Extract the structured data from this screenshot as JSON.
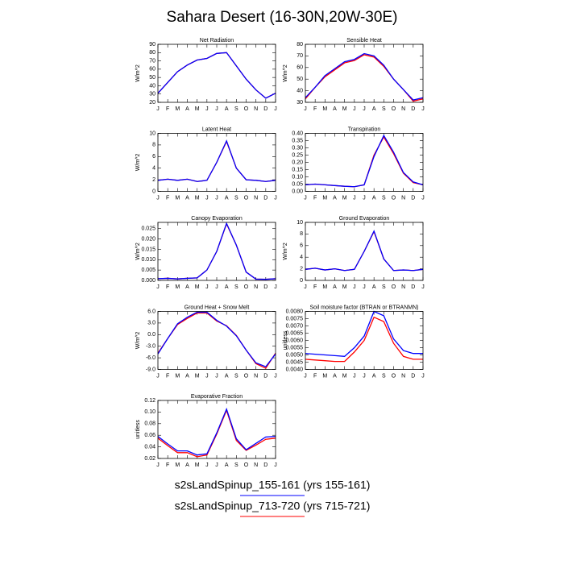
{
  "title": "Sahara Desert (16-30N,20W-30E)",
  "chart_data": [
    {
      "type": "line",
      "title": "Net Radiation",
      "y_label": "W/m^2",
      "categories": [
        "J",
        "F",
        "M",
        "A",
        "M",
        "J",
        "J",
        "A",
        "S",
        "O",
        "N",
        "D",
        "J"
      ],
      "ylim": [
        20,
        90
      ],
      "yticks": [
        20,
        30,
        40,
        50,
        60,
        70,
        80,
        90
      ],
      "series": [
        {
          "name": "s2sLandSpinup_155-161 (yrs 155-161)",
          "color": "#0000ff",
          "values": [
            31,
            44,
            57,
            65,
            71,
            73,
            79,
            80,
            64,
            48,
            35,
            25,
            31
          ]
        },
        {
          "name": "s2sLandSpinup_713-720 (yrs 715-721)",
          "color": "#ff0000",
          "values": [
            31,
            44,
            57,
            65,
            71,
            73,
            79,
            80,
            64,
            48,
            35,
            25,
            31
          ]
        }
      ]
    },
    {
      "type": "line",
      "title": "Sensible Heat",
      "y_label": "W/m^2",
      "categories": [
        "J",
        "F",
        "M",
        "A",
        "M",
        "J",
        "J",
        "A",
        "S",
        "O",
        "N",
        "D",
        "J"
      ],
      "ylim": [
        30,
        80
      ],
      "yticks": [
        30,
        40,
        50,
        60,
        70,
        80
      ],
      "series": [
        {
          "name": "s2sLandSpinup_155-161 (yrs 155-161)",
          "color": "#0000ff",
          "values": [
            34,
            43,
            53,
            59,
            65,
            67,
            72,
            70,
            62,
            50,
            41,
            32,
            34
          ]
        },
        {
          "name": "s2sLandSpinup_713-720 (yrs 715-721)",
          "color": "#ff0000",
          "values": [
            33,
            43,
            52,
            58,
            64,
            66,
            71,
            69,
            61,
            50,
            41,
            31,
            33
          ]
        }
      ]
    },
    {
      "type": "line",
      "title": "Latent Heat",
      "y_label": "W/m^2",
      "categories": [
        "J",
        "F",
        "M",
        "A",
        "M",
        "J",
        "J",
        "A",
        "S",
        "O",
        "N",
        "D",
        "J"
      ],
      "ylim": [
        0,
        10
      ],
      "yticks": [
        0,
        2,
        4,
        6,
        8,
        10
      ],
      "series": [
        {
          "name": "s2sLandSpinup_155-161 (yrs 155-161)",
          "color": "#0000ff",
          "values": [
            1.9,
            2.1,
            1.9,
            2.1,
            1.7,
            1.9,
            5,
            8.7,
            4,
            2,
            1.9,
            1.7,
            1.9
          ]
        },
        {
          "name": "s2sLandSpinup_713-720 (yrs 715-721)",
          "color": "#ff0000",
          "values": [
            1.9,
            2.1,
            1.9,
            2.1,
            1.7,
            1.9,
            5,
            8.6,
            4,
            2,
            1.9,
            1.7,
            1.9
          ]
        }
      ]
    },
    {
      "type": "line",
      "title": "Transpiration",
      "categories": [
        "J",
        "F",
        "M",
        "A",
        "M",
        "J",
        "J",
        "A",
        "S",
        "O",
        "N",
        "D",
        "J"
      ],
      "ylim": [
        0,
        0.4
      ],
      "yticks": [
        {
          "value": 0,
          "label": "0.00"
        },
        0.05,
        {
          "value": 0.1,
          "label": "0.10"
        },
        0.15,
        {
          "value": 0.2,
          "label": "0.20"
        },
        0.25,
        {
          "value": 0.3,
          "label": "0.30"
        },
        0.35,
        {
          "value": 0.4,
          "label": "0.40"
        }
      ],
      "series": [
        {
          "name": "s2sLandSpinup_155-161 (yrs 155-161)",
          "color": "#0000ff",
          "values": [
            0.045,
            0.05,
            0.045,
            0.04,
            0.035,
            0.032,
            0.045,
            0.24,
            0.385,
            0.27,
            0.13,
            0.065,
            0.045
          ]
        },
        {
          "name": "s2sLandSpinup_713-720 (yrs 715-721)",
          "color": "#ff0000",
          "values": [
            0.045,
            0.05,
            0.045,
            0.04,
            0.035,
            0.032,
            0.045,
            0.25,
            0.375,
            0.26,
            0.125,
            0.06,
            0.045
          ]
        }
      ]
    },
    {
      "type": "line",
      "title": "Canopy Evaporation",
      "y_label": "W/m^2",
      "categories": [
        "J",
        "F",
        "M",
        "A",
        "M",
        "J",
        "J",
        "A",
        "S",
        "O",
        "N",
        "D",
        "J"
      ],
      "ylim": [
        0,
        0.028
      ],
      "yticks": [
        {
          "value": 0,
          "label": "0.000"
        },
        0.005,
        {
          "value": 0.01,
          "label": "0.010"
        },
        0.015,
        {
          "value": 0.02,
          "label": "0.020"
        },
        0.025
      ],
      "series": [
        {
          "name": "s2sLandSpinup_155-161 (yrs 155-161)",
          "color": "#0000ff",
          "values": [
            0.0008,
            0.001,
            0.0007,
            0.001,
            0.0012,
            0.005,
            0.014,
            0.0275,
            0.017,
            0.004,
            0.0006,
            0.0005,
            0.0008
          ]
        },
        {
          "name": "s2sLandSpinup_713-720 (yrs 715-721)",
          "color": "#ff0000",
          "values": [
            0.0008,
            0.001,
            0.0007,
            0.001,
            0.0012,
            0.005,
            0.014,
            0.0273,
            0.017,
            0.004,
            0.0006,
            0.0005,
            0.0008
          ]
        }
      ]
    },
    {
      "type": "line",
      "title": "Ground Evaporation",
      "y_label": "W/m^2",
      "categories": [
        "J",
        "F",
        "M",
        "A",
        "M",
        "J",
        "J",
        "A",
        "S",
        "O",
        "N",
        "D",
        "J"
      ],
      "ylim": [
        0,
        10
      ],
      "yticks": [
        0,
        2,
        4,
        6,
        8,
        10
      ],
      "series": [
        {
          "name": "s2sLandSpinup_155-161 (yrs 155-161)",
          "color": "#0000ff",
          "values": [
            1.9,
            2.1,
            1.8,
            2,
            1.7,
            1.9,
            5,
            8.5,
            3.7,
            1.7,
            1.8,
            1.7,
            1.9
          ]
        },
        {
          "name": "s2sLandSpinup_713-720 (yrs 715-721)",
          "color": "#ff0000",
          "values": [
            1.9,
            2.1,
            1.8,
            2,
            1.7,
            1.9,
            5,
            8.4,
            3.7,
            1.7,
            1.8,
            1.7,
            1.9
          ]
        }
      ]
    },
    {
      "type": "line",
      "title": "Ground Heat + Snow Melt",
      "y_label": "W/m^2",
      "categories": [
        "J",
        "F",
        "M",
        "A",
        "M",
        "J",
        "J",
        "A",
        "S",
        "O",
        "N",
        "D",
        "J"
      ],
      "ylim": [
        -9,
        6
      ],
      "yticks": [
        {
          "value": -9,
          "label": "-9.0"
        },
        {
          "value": -6,
          "label": "-6.0"
        },
        {
          "value": -3,
          "label": "-3.0"
        },
        {
          "value": 0,
          "label": "0.0"
        },
        {
          "value": 3,
          "label": "3.0"
        },
        {
          "value": 6,
          "label": "6.0"
        }
      ],
      "series": [
        {
          "name": "s2sLandSpinup_155-161 (yrs 155-161)",
          "color": "#0000ff",
          "values": [
            -5,
            -1,
            2.8,
            4.5,
            5.8,
            5.8,
            3.7,
            2.2,
            -0.3,
            -4,
            -7.3,
            -8.3,
            -5
          ]
        },
        {
          "name": "s2sLandSpinup_713-720 (yrs 715-721)",
          "color": "#ff0000",
          "values": [
            -4.8,
            -1,
            2.6,
            4.2,
            5.6,
            5.6,
            3.5,
            2.3,
            -0.2,
            -4,
            -7.5,
            -8.7,
            -4.8
          ]
        }
      ]
    },
    {
      "type": "line",
      "title": "Soil moisture factor (BTRAN or BTRANMN)",
      "y_label": "unitless",
      "categories": [
        "J",
        "F",
        "M",
        "A",
        "M",
        "J",
        "J",
        "A",
        "S",
        "O",
        "N",
        "D",
        "J"
      ],
      "ylim": [
        0.004,
        0.008
      ],
      "yticks": [
        {
          "value": 0.004,
          "label": "0.0040"
        },
        0.0045,
        {
          "value": 0.005,
          "label": "0.0050"
        },
        0.0055,
        {
          "value": 0.006,
          "label": "0.0060"
        },
        0.0065,
        {
          "value": 0.007,
          "label": "0.0070"
        },
        0.0075,
        {
          "value": 0.008,
          "label": "0.0080"
        }
      ],
      "series": [
        {
          "name": "s2sLandSpinup_155-161 (yrs 155-161)",
          "color": "#0000ff",
          "values": [
            0.0051,
            0.00505,
            0.005,
            0.00495,
            0.0049,
            0.0055,
            0.0063,
            0.008,
            0.0077,
            0.0061,
            0.0053,
            0.0051,
            0.0051
          ]
        },
        {
          "name": "s2sLandSpinup_713-720 (yrs 715-721)",
          "color": "#ff0000",
          "values": [
            0.0047,
            0.00465,
            0.0046,
            0.00455,
            0.00455,
            0.0052,
            0.006,
            0.0076,
            0.0073,
            0.0058,
            0.0049,
            0.0047,
            0.0047
          ]
        }
      ]
    },
    {
      "type": "line",
      "title": "Evaporative Fraction",
      "y_label": "unitless",
      "categories": [
        "J",
        "F",
        "M",
        "A",
        "M",
        "J",
        "J",
        "A",
        "S",
        "O",
        "N",
        "D",
        "J"
      ],
      "ylim": [
        0.02,
        0.12
      ],
      "yticks": [
        0.02,
        0.04,
        0.06,
        0.08,
        {
          "value": 0.1,
          "label": "0.10"
        },
        0.12
      ],
      "series": [
        {
          "name": "s2sLandSpinup_155-161 (yrs 155-161)",
          "color": "#0000ff",
          "values": [
            0.058,
            0.045,
            0.033,
            0.033,
            0.026,
            0.028,
            0.064,
            0.105,
            0.054,
            0.035,
            0.046,
            0.057,
            0.058
          ]
        },
        {
          "name": "s2sLandSpinup_713-720 (yrs 715-721)",
          "color": "#ff0000",
          "values": [
            0.055,
            0.042,
            0.03,
            0.03,
            0.023,
            0.026,
            0.062,
            0.103,
            0.051,
            0.034,
            0.043,
            0.053,
            0.055
          ]
        }
      ]
    }
  ]
}
